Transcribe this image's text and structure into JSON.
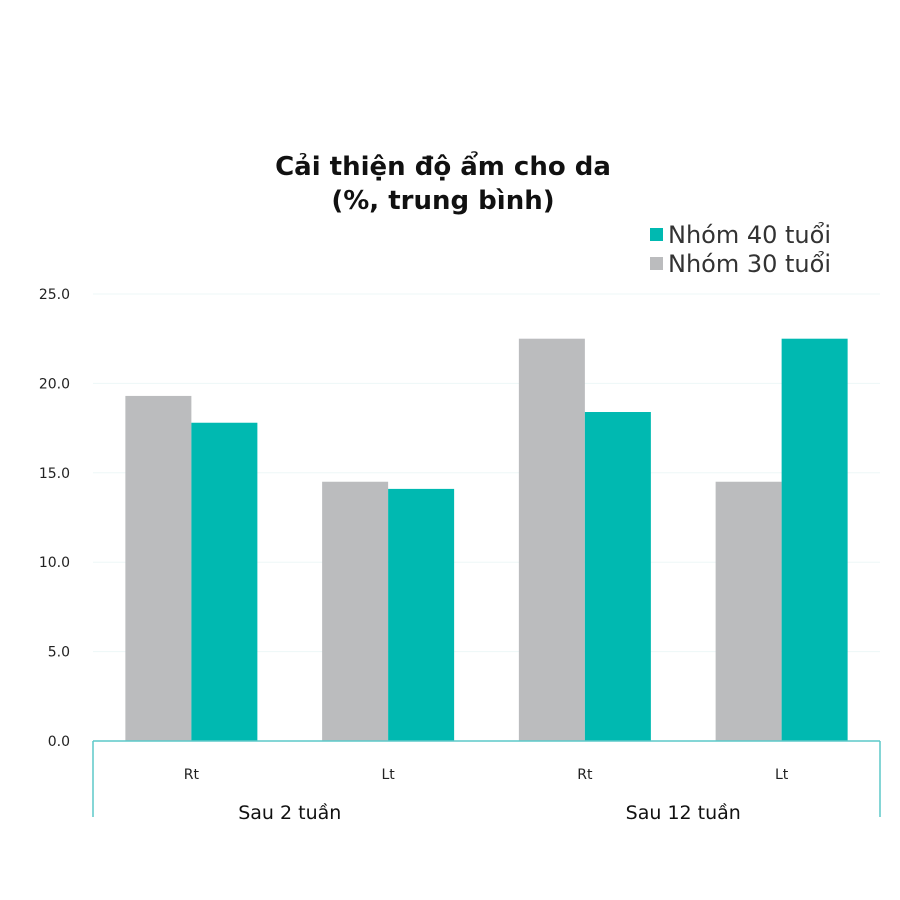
{
  "chart_data": {
    "type": "bar",
    "title": [
      "Cải thiện độ ẩm cho da",
      "(%, trung bình)"
    ],
    "categories": [
      "Rt",
      "Lt",
      "Rt",
      "Lt"
    ],
    "groups": [
      {
        "label": "Sau 2 tuần",
        "categories": [
          0,
          1
        ]
      },
      {
        "label": "Sau 12 tuần",
        "categories": [
          2,
          3
        ]
      }
    ],
    "series": [
      {
        "name": "Nhóm 30 tuổi",
        "color": "#bbbcbe",
        "values": [
          19.3,
          14.5,
          22.5,
          14.5
        ]
      },
      {
        "name": "Nhóm 40 tuổi",
        "color": "#00b9b1",
        "values": [
          17.8,
          14.1,
          18.4,
          22.5
        ]
      }
    ],
    "legend_order": [
      1,
      0
    ],
    "legend_position": "top-right",
    "yticks": [
      "25.0",
      "20.0",
      "15.0",
      "10.0",
      "5.0",
      "0.0"
    ],
    "ylim": [
      0,
      25
    ],
    "grid": true,
    "axis_color": "#5cc8c8"
  }
}
